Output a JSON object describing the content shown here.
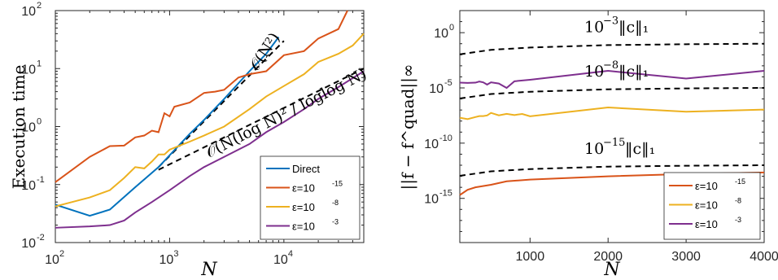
{
  "chart_data": [
    {
      "type": "line",
      "xscale": "log",
      "yscale": "log",
      "xlim": [
        100,
        50000
      ],
      "ylim": [
        0.01,
        100
      ],
      "xlabel": "N",
      "ylabel": "Execution time",
      "xticks": [
        {
          "base": "10",
          "exp": "2"
        },
        {
          "base": "10",
          "exp": "3"
        },
        {
          "base": "10",
          "exp": "4"
        }
      ],
      "yticks": [
        {
          "base": "10",
          "exp": "-2"
        },
        {
          "base": "10",
          "exp": "-1"
        },
        {
          "base": "10",
          "exp": "0"
        },
        {
          "base": "10",
          "exp": "1"
        },
        {
          "base": "10",
          "exp": "2"
        }
      ],
      "legend_position": "bottom-right",
      "series": [
        {
          "name": "Direct",
          "color": "#0072BD",
          "x": [
            100,
            200,
            300,
            500,
            800,
            1000,
            1500,
            2000,
            3000,
            5000,
            7000,
            9000
          ],
          "y": [
            0.045,
            0.029,
            0.037,
            0.09,
            0.2,
            0.32,
            0.75,
            1.3,
            3.0,
            9.0,
            18,
            35
          ]
        },
        {
          "name": "ε=10^-15",
          "legend_base": "ε=10",
          "legend_exp": "-15",
          "color": "#D95319",
          "x": [
            100,
            200,
            300,
            400,
            500,
            600,
            700,
            800,
            900,
            1000,
            1100,
            1500,
            2000,
            2500,
            3000,
            4000,
            5000,
            7000,
            10000,
            15000,
            20000,
            30000,
            36000
          ],
          "y": [
            0.11,
            0.3,
            0.46,
            0.47,
            0.65,
            0.7,
            0.85,
            0.8,
            1.7,
            1.5,
            2.2,
            2.6,
            3.8,
            4.0,
            4.3,
            7.0,
            8.0,
            9.0,
            17.0,
            20.0,
            33.0,
            48.0,
            100.0
          ]
        },
        {
          "name": "ε=10^-8",
          "legend_base": "ε=10",
          "legend_exp": "-8",
          "color": "#EDB120",
          "x": [
            100,
            200,
            300,
            400,
            500,
            600,
            700,
            800,
            900,
            1000,
            1500,
            2000,
            3000,
            5000,
            7000,
            10000,
            15000,
            20000,
            30000,
            40000,
            50000
          ],
          "y": [
            0.042,
            0.06,
            0.08,
            0.13,
            0.2,
            0.19,
            0.25,
            0.33,
            0.33,
            0.4,
            0.55,
            0.7,
            1.0,
            2.0,
            3.3,
            5.0,
            8.0,
            13.0,
            18.0,
            25.0,
            40.0
          ]
        },
        {
          "name": "ε=10^-3",
          "legend_base": "ε=10",
          "legend_exp": "-3",
          "color": "#7E2F8E",
          "x": [
            100,
            200,
            300,
            400,
            500,
            700,
            1000,
            1500,
            2000,
            3000,
            5000,
            7000,
            10000,
            15000,
            20000,
            30000,
            50000
          ],
          "y": [
            0.018,
            0.019,
            0.02,
            0.024,
            0.033,
            0.05,
            0.08,
            0.14,
            0.2,
            0.3,
            0.5,
            0.8,
            1.2,
            2.0,
            3.0,
            4.8,
            9.0
          ]
        }
      ],
      "reference_lines": [
        {
          "x": [
            800,
            10000
          ],
          "y": [
            0.2,
            30.0
          ],
          "label": "𝒪(N²)"
        },
        {
          "x": [
            800,
            50000
          ],
          "y": [
            0.18,
            10.0
          ],
          "label": "𝒪(N(log N)² / loglog N)"
        }
      ]
    },
    {
      "type": "line",
      "xscale": "linear",
      "yscale": "log",
      "xlim": [
        100,
        4000
      ],
      "ylim": [
        1e-19,
        100
      ],
      "xlabel": "N",
      "ylabel": "||f − f^quad||∞",
      "xticks": [
        "1000",
        "2000",
        "3000",
        "4000"
      ],
      "yticks": [
        {
          "base": "10",
          "exp": "0"
        },
        {
          "base": "10",
          "exp": "-5"
        },
        {
          "base": "10",
          "exp": "-10"
        },
        {
          "base": "10",
          "exp": "-15"
        }
      ],
      "legend_position": "bottom-right",
      "series": [
        {
          "name": "ε=10^-15",
          "legend_base": "ε=10",
          "legend_exp": "-15",
          "color": "#D95319",
          "x": [
            100,
            200,
            300,
            500,
            700,
            1000,
            2000,
            3000,
            4000
          ],
          "y": [
            2e-15,
            6e-15,
            1e-14,
            1.7e-14,
            3.5e-14,
            5e-14,
            1e-13,
            1.6e-13,
            2.2e-13
          ]
        },
        {
          "name": "ε=10^-8",
          "legend_base": "ε=10",
          "legend_exp": "-8",
          "color": "#EDB120",
          "x": [
            100,
            200,
            300,
            350,
            400,
            450,
            500,
            600,
            700,
            800,
            900,
            1000,
            2000,
            3000,
            4000
          ],
          "y": [
            2e-08,
            1.5e-08,
            2.3e-08,
            2.8e-08,
            2.8e-08,
            3.2e-08,
            5.5e-08,
            3.3e-08,
            4.5e-08,
            3.5e-08,
            4.4e-08,
            2.7e-08,
            1.7e-07,
            7e-08,
            1.1e-07
          ]
        },
        {
          "name": "ε=10^-3",
          "legend_base": "ε=10",
          "legend_exp": "-3",
          "color": "#7E2F8E",
          "x": [
            100,
            200,
            300,
            350,
            400,
            450,
            500,
            600,
            700,
            800,
            1000,
            2000,
            3000,
            4000
          ],
          "y": [
            3e-05,
            2.8e-05,
            3e-05,
            3.8e-05,
            3.2e-05,
            2e-05,
            3.2e-05,
            2.5e-05,
            1e-05,
            4e-05,
            5.5e-05,
            0.00035,
            7e-05,
            0.00035
          ]
        }
      ],
      "reference_lines": [
        {
          "label_base": "10",
          "label_exp": "−3",
          "label_norm": "‖c‖₁",
          "x": [
            100,
            500,
            1000,
            2000,
            3000,
            4000
          ],
          "y": [
            0.011,
            0.028,
            0.045,
            0.075,
            0.09,
            0.1
          ]
        },
        {
          "label_base": "10",
          "label_exp": "−8",
          "label_norm": "‖c‖₁",
          "x": [
            100,
            500,
            1000,
            2000,
            3000,
            4000
          ],
          "y": [
            1.1e-06,
            2.8e-06,
            4.5e-06,
            7.5e-06,
            9e-06,
            1e-05
          ]
        },
        {
          "label_base": "10",
          "label_exp": "−15",
          "label_norm": "‖c‖₁",
          "x": [
            100,
            500,
            1000,
            2000,
            3000,
            4000
          ],
          "y": [
            1.1e-13,
            2.8e-13,
            4.5e-13,
            7.5e-13,
            9e-13,
            1e-12
          ]
        }
      ]
    }
  ]
}
